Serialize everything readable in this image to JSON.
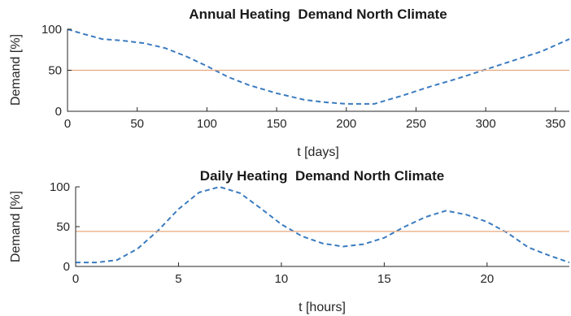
{
  "chart_data": [
    {
      "type": "line",
      "title": "Annual Heating  Demand North Climate",
      "xlabel": "t [days]",
      "ylabel": "Demand [%]",
      "xlim": [
        0,
        360
      ],
      "ylim": [
        0,
        100
      ],
      "xticks": [
        0,
        50,
        100,
        150,
        200,
        250,
        300,
        350
      ],
      "yticks": [
        0,
        50,
        100
      ],
      "grid": false,
      "series": [
        {
          "style": "dashed",
          "color": "#3b7bbf",
          "x": [
            0,
            10,
            25,
            40,
            55,
            70,
            85,
            100,
            115,
            130,
            150,
            170,
            185,
            200,
            220,
            240,
            260,
            280,
            300,
            320,
            340,
            360
          ],
          "y": [
            100,
            95,
            88,
            86,
            83,
            77,
            67,
            55,
            42,
            32,
            22,
            14,
            11,
            9,
            9,
            19,
            30,
            40,
            51,
            62,
            73,
            88
          ]
        },
        {
          "style": "solid",
          "color": "#e8a77c",
          "x": [
            0,
            360
          ],
          "y": [
            50,
            50
          ]
        }
      ]
    },
    {
      "type": "line",
      "title": "Daily Heating  Demand North Climate",
      "xlabel": "t [hours]",
      "ylabel": "Demand [%]",
      "xlim": [
        0,
        24
      ],
      "ylim": [
        0,
        100
      ],
      "xticks": [
        0,
        5,
        10,
        15,
        20
      ],
      "yticks": [
        0,
        50,
        100
      ],
      "grid": false,
      "series": [
        {
          "style": "dashed",
          "color": "#3b7bbf",
          "x": [
            0,
            1,
            2,
            3,
            4,
            5,
            6,
            7,
            8,
            9,
            10,
            11,
            12,
            13,
            14,
            15,
            16,
            17,
            18,
            19,
            20,
            21,
            22,
            23,
            24
          ],
          "y": [
            5,
            5,
            8,
            22,
            45,
            72,
            93,
            100,
            92,
            73,
            53,
            38,
            29,
            25,
            28,
            36,
            50,
            62,
            70,
            65,
            56,
            42,
            24,
            14,
            5
          ]
        },
        {
          "style": "solid",
          "color": "#e8a77c",
          "x": [
            0,
            24
          ],
          "y": [
            44,
            44
          ]
        }
      ]
    }
  ]
}
